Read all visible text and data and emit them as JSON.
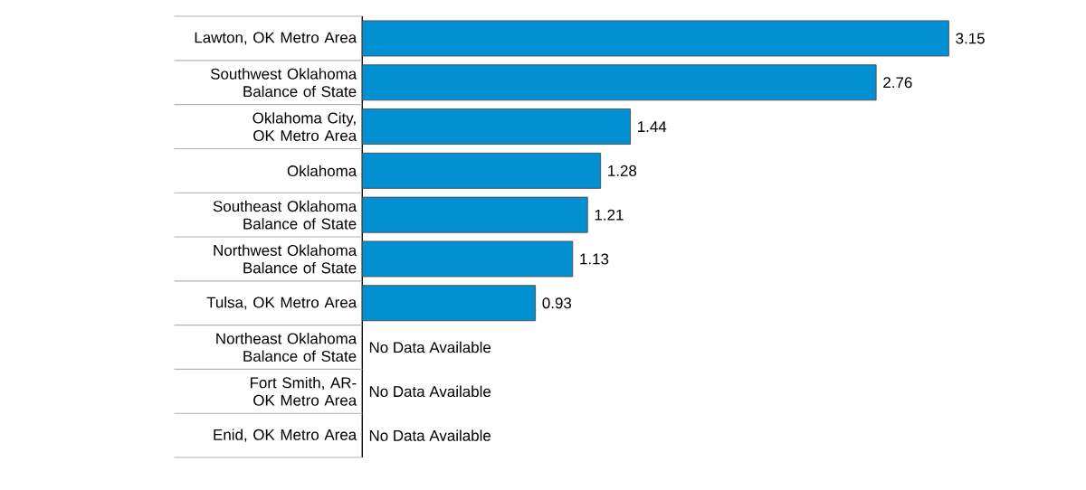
{
  "chart_data": {
    "type": "bar",
    "orientation": "horizontal",
    "color": "#0290d2",
    "categories": [
      "Lawton, OK Metro Area",
      "Southwest Oklahoma Balance of State",
      "Oklahoma City, OK Metro Area",
      "Oklahoma",
      "Southeast Oklahoma Balance of State",
      "Northwest Oklahoma Balance of State",
      "Tulsa, OK Metro Area",
      "Northeast Oklahoma Balance of State",
      "Fort Smith, AR-OK Metro Area",
      "Enid, OK Metro Area"
    ],
    "values": [
      3.15,
      2.76,
      1.44,
      1.28,
      1.21,
      1.13,
      0.93,
      null,
      null,
      null
    ],
    "value_labels": [
      "3.15",
      "2.76",
      "1.44",
      "1.28",
      "1.21",
      "1.13",
      "0.93",
      "No Data Available",
      "No Data Available",
      "No Data Available"
    ]
  }
}
